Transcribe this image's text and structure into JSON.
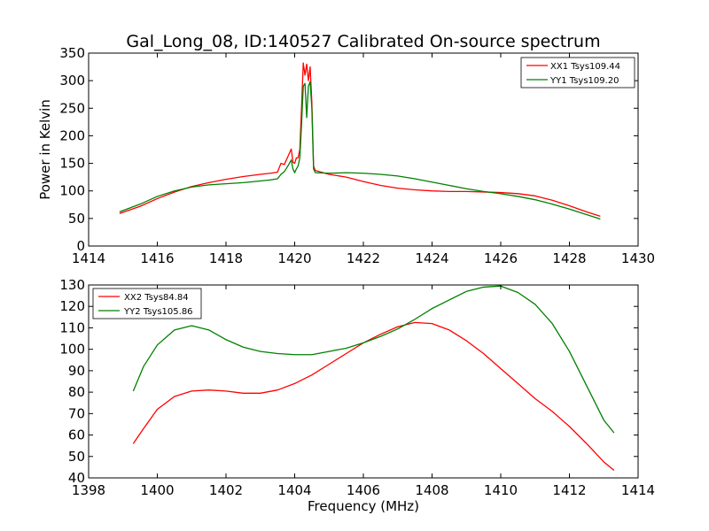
{
  "title": "Gal_Long_08, ID:140527 Calibrated On-source spectrum",
  "colors": {
    "xx": "#ff0000",
    "yy": "#008000"
  },
  "chart_data": [
    {
      "type": "line",
      "ylabel": "Power in Kelvin",
      "xlabel": "",
      "xlim": [
        1414,
        1430
      ],
      "ylim": [
        0,
        350
      ],
      "xticks": [
        1414,
        1416,
        1418,
        1420,
        1422,
        1424,
        1426,
        1428,
        1430
      ],
      "yticks": [
        0,
        50,
        100,
        150,
        200,
        250,
        300,
        350
      ],
      "legend": "top-right",
      "series": [
        {
          "name": "XX1 Tsys109.44",
          "color": "#ff0000",
          "points": [
            [
              1414.9,
              59
            ],
            [
              1415.5,
              72
            ],
            [
              1416,
              86
            ],
            [
              1416.5,
              98
            ],
            [
              1417,
              108
            ],
            [
              1417.5,
              115
            ],
            [
              1418,
              121
            ],
            [
              1418.5,
              126
            ],
            [
              1419,
              130
            ],
            [
              1419.3,
              132
            ],
            [
              1419.5,
              134
            ],
            [
              1419.6,
              150
            ],
            [
              1419.7,
              148
            ],
            [
              1419.8,
              162
            ],
            [
              1419.9,
              176
            ],
            [
              1419.95,
              152
            ],
            [
              1420.0,
              150
            ],
            [
              1420.05,
              160
            ],
            [
              1420.1,
              160
            ],
            [
              1420.15,
              175
            ],
            [
              1420.2,
              250
            ],
            [
              1420.25,
              332
            ],
            [
              1420.3,
              310
            ],
            [
              1420.35,
              330
            ],
            [
              1420.4,
              300
            ],
            [
              1420.45,
              325
            ],
            [
              1420.5,
              260
            ],
            [
              1420.55,
              145
            ],
            [
              1420.6,
              137
            ],
            [
              1421,
              130
            ],
            [
              1421.5,
              125
            ],
            [
              1422,
              117
            ],
            [
              1422.5,
              110
            ],
            [
              1423,
              105
            ],
            [
              1423.5,
              102
            ],
            [
              1424,
              100
            ],
            [
              1424.5,
              99
            ],
            [
              1425,
              99
            ],
            [
              1425.5,
              98
            ],
            [
              1426,
              97
            ],
            [
              1426.5,
              95
            ],
            [
              1427,
              91
            ],
            [
              1427.5,
              83
            ],
            [
              1428,
              73
            ],
            [
              1428.5,
              62
            ],
            [
              1428.9,
              54
            ]
          ]
        },
        {
          "name": "YY1 Tsys109.20",
          "color": "#008000",
          "points": [
            [
              1414.9,
              62
            ],
            [
              1415.5,
              76
            ],
            [
              1416,
              90
            ],
            [
              1416.5,
              100
            ],
            [
              1417,
              107
            ],
            [
              1417.5,
              111
            ],
            [
              1418,
              113
            ],
            [
              1418.5,
              115
            ],
            [
              1419,
              118
            ],
            [
              1419.3,
              120
            ],
            [
              1419.5,
              122
            ],
            [
              1419.6,
              130
            ],
            [
              1419.7,
              135
            ],
            [
              1419.8,
              145
            ],
            [
              1419.9,
              156
            ],
            [
              1419.95,
              140
            ],
            [
              1420.0,
              133
            ],
            [
              1420.05,
              140
            ],
            [
              1420.1,
              145
            ],
            [
              1420.15,
              160
            ],
            [
              1420.2,
              220
            ],
            [
              1420.25,
              290
            ],
            [
              1420.3,
              295
            ],
            [
              1420.35,
              233
            ],
            [
              1420.4,
              290
            ],
            [
              1420.45,
              298
            ],
            [
              1420.5,
              250
            ],
            [
              1420.55,
              140
            ],
            [
              1420.6,
              133
            ],
            [
              1421,
              132
            ],
            [
              1421.5,
              133
            ],
            [
              1422,
              132
            ],
            [
              1422.5,
              130
            ],
            [
              1423,
              127
            ],
            [
              1423.5,
              122
            ],
            [
              1424,
              116
            ],
            [
              1424.5,
              110
            ],
            [
              1425,
              104
            ],
            [
              1425.5,
              99
            ],
            [
              1426,
              95
            ],
            [
              1426.5,
              90
            ],
            [
              1427,
              84
            ],
            [
              1427.5,
              76
            ],
            [
              1428,
              67
            ],
            [
              1428.5,
              57
            ],
            [
              1428.9,
              49
            ]
          ]
        }
      ]
    },
    {
      "type": "line",
      "ylabel": "",
      "xlabel": "Frequency (MHz)",
      "xlim": [
        1398,
        1414
      ],
      "ylim": [
        40,
        130
      ],
      "xticks": [
        1398,
        1400,
        1402,
        1404,
        1406,
        1408,
        1410,
        1412,
        1414
      ],
      "yticks": [
        40,
        50,
        60,
        70,
        80,
        90,
        100,
        110,
        120,
        130
      ],
      "legend": "top-left",
      "series": [
        {
          "name": "XX2 Tsys84.84",
          "color": "#ff0000",
          "points": [
            [
              1399.3,
              56
            ],
            [
              1399.6,
              63
            ],
            [
              1400,
              72
            ],
            [
              1400.5,
              78
            ],
            [
              1401,
              80.5
            ],
            [
              1401.5,
              81
            ],
            [
              1402,
              80.5
            ],
            [
              1402.5,
              79.5
            ],
            [
              1403,
              79.5
            ],
            [
              1403.5,
              81
            ],
            [
              1404,
              84
            ],
            [
              1404.5,
              88
            ],
            [
              1405,
              93
            ],
            [
              1405.5,
              98
            ],
            [
              1406,
              103
            ],
            [
              1406.5,
              107
            ],
            [
              1407,
              110.5
            ],
            [
              1407.5,
              112.5
            ],
            [
              1408,
              112
            ],
            [
              1408.5,
              109
            ],
            [
              1409,
              104
            ],
            [
              1409.5,
              98
            ],
            [
              1410,
              91
            ],
            [
              1410.5,
              84
            ],
            [
              1411,
              77
            ],
            [
              1411.5,
              71
            ],
            [
              1412,
              64
            ],
            [
              1412.5,
              56
            ],
            [
              1413,
              47.5
            ],
            [
              1413.3,
              43.5
            ]
          ]
        },
        {
          "name": "YY2 Tsys105.86",
          "color": "#008000",
          "points": [
            [
              1399.3,
              80.5
            ],
            [
              1399.6,
              92
            ],
            [
              1400,
              102
            ],
            [
              1400.5,
              109
            ],
            [
              1401,
              111
            ],
            [
              1401.5,
              109
            ],
            [
              1402,
              104.5
            ],
            [
              1402.5,
              101
            ],
            [
              1403,
              99
            ],
            [
              1403.5,
              98
            ],
            [
              1404,
              97.5
            ],
            [
              1404.5,
              97.5
            ],
            [
              1405,
              99
            ],
            [
              1405.5,
              100.5
            ],
            [
              1406,
              103
            ],
            [
              1406.5,
              106
            ],
            [
              1407,
              109.5
            ],
            [
              1407.5,
              114
            ],
            [
              1408,
              119
            ],
            [
              1408.5,
              123
            ],
            [
              1409,
              127
            ],
            [
              1409.5,
              129
            ],
            [
              1410,
              129.5
            ],
            [
              1410.5,
              126.5
            ],
            [
              1411,
              121
            ],
            [
              1411.5,
              112
            ],
            [
              1412,
              99
            ],
            [
              1412.5,
              83
            ],
            [
              1413,
              67
            ],
            [
              1413.3,
              61
            ]
          ]
        }
      ]
    }
  ]
}
